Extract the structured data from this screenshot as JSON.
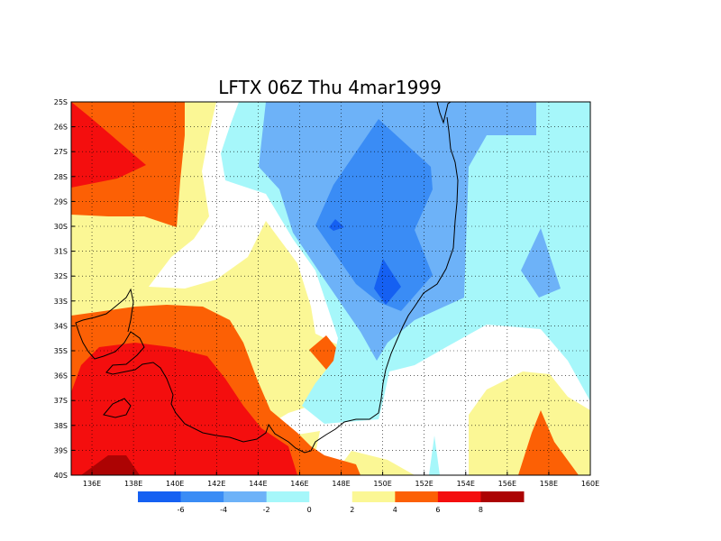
{
  "title": "LFTX 06Z Thu 4mar1999",
  "map": {
    "variable": "LFTX",
    "lon_range": [
      135,
      160
    ],
    "lat_range": [
      -40,
      -25
    ],
    "lon_ticks": [
      "136E",
      "138E",
      "140E",
      "142E",
      "144E",
      "146E",
      "148E",
      "150E",
      "152E",
      "154E",
      "156E",
      "158E",
      "160E"
    ],
    "lat_ticks": [
      "25S",
      "26S",
      "27S",
      "28S",
      "29S",
      "30S",
      "31S",
      "32S",
      "33S",
      "34S",
      "35S",
      "36S",
      "37S",
      "38S",
      "39S",
      "40S"
    ],
    "grid": "dotted",
    "coastline_color": "#000000"
  },
  "colorbar": {
    "colors": [
      "#1560f2",
      "#3a8cf5",
      "#6db2f8",
      "#a6f7fa",
      "#ffffff",
      "#fbf795",
      "#fc6005",
      "#f40e0e",
      "#ac0303"
    ],
    "labels": [
      "-6",
      "-4",
      "-2",
      "0",
      "2",
      "4",
      "6",
      "8"
    ]
  }
}
